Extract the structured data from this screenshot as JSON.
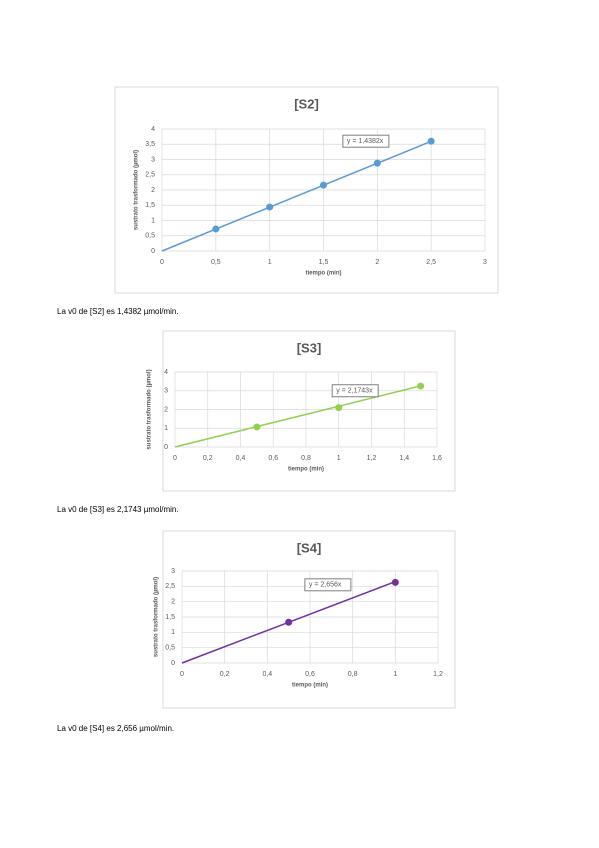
{
  "chart_data": [
    {
      "type": "scatter",
      "title": "[S2]",
      "x_label": "tiempo (min)",
      "y_label": "sustrato trasformado (µmol)",
      "x": [
        0.5,
        1,
        1.5,
        2,
        2.5
      ],
      "series": [
        {
          "color": "#5b9bd5",
          "values": [
            0.72,
            1.44,
            2.16,
            2.88,
            3.6
          ]
        }
      ],
      "trendline": {
        "label": "y = 1,4382x",
        "slope": 1.4382
      },
      "xlim": [
        0,
        3
      ],
      "xticks": [
        0,
        {
          "value": 0.5,
          "label": "0,5"
        },
        1,
        {
          "value": 1.5,
          "label": "1,5"
        },
        2,
        {
          "value": 2.5,
          "label": "2,5"
        },
        3
      ],
      "ylim": [
        0,
        4
      ],
      "yticks": [
        0,
        {
          "value": 0.5,
          "label": "0,5"
        },
        1,
        {
          "value": 1.5,
          "label": "1,5"
        },
        2,
        {
          "value": 2.5,
          "label": "2,5"
        },
        3,
        {
          "value": 3.5,
          "label": "3,5"
        },
        4
      ],
      "grid": true
    },
    {
      "type": "scatter",
      "title": "[S3]",
      "x_label": "tiempo (min)",
      "y_label": "sustrato trasformado (µmol)",
      "x": [
        0.5,
        1,
        1.5
      ],
      "series": [
        {
          "color": "#92d050",
          "values": [
            1.07,
            2.1,
            3.25
          ]
        }
      ],
      "trendline": {
        "label": "y = 2,1743x",
        "slope": 2.1743
      },
      "xlim": [
        0,
        1.6
      ],
      "xticks": [
        0,
        {
          "value": 0.2,
          "label": "0,2"
        },
        {
          "value": 0.4,
          "label": "0,4"
        },
        {
          "value": 0.6,
          "label": "0,6"
        },
        {
          "value": 0.8,
          "label": "0,8"
        },
        1,
        {
          "value": 1.2,
          "label": "1,2"
        },
        {
          "value": 1.4,
          "label": "1,4"
        },
        {
          "value": 1.6,
          "label": "1,6"
        }
      ],
      "ylim": [
        0,
        4
      ],
      "yticks": [
        0,
        1,
        2,
        3,
        4
      ],
      "grid": true
    },
    {
      "type": "scatter",
      "title": "[S4]",
      "x_label": "tiempo (min)",
      "y_label": "sustrato trasformado (µmol)",
      "x": [
        0.5,
        1
      ],
      "series": [
        {
          "color": "#7030a0",
          "values": [
            1.33,
            2.63
          ]
        }
      ],
      "trendline": {
        "label": "y = 2,656x",
        "slope": 2.656
      },
      "xlim": [
        0,
        1.2
      ],
      "xticks": [
        0,
        {
          "value": 0.2,
          "label": "0,2"
        },
        {
          "value": 0.4,
          "label": "0,4"
        },
        {
          "value": 0.6,
          "label": "0,6"
        },
        {
          "value": 0.8,
          "label": "0,8"
        },
        1,
        {
          "value": 1.2,
          "label": "1,2"
        }
      ],
      "ylim": [
        0,
        3
      ],
      "yticks": [
        0,
        {
          "value": 0.5,
          "label": "0,5"
        },
        1,
        {
          "value": 1.5,
          "label": "1,5"
        },
        2,
        {
          "value": 2.5,
          "label": "2,5"
        },
        3
      ],
      "grid": true
    }
  ],
  "paragraphs": [
    "La v0 de [S2] es 1,4382 µmol/min.",
    "La v0 de [S3] es 2,1743 µmol/min.",
    "La v0 de [S4] es 2,656 µmol/min."
  ]
}
